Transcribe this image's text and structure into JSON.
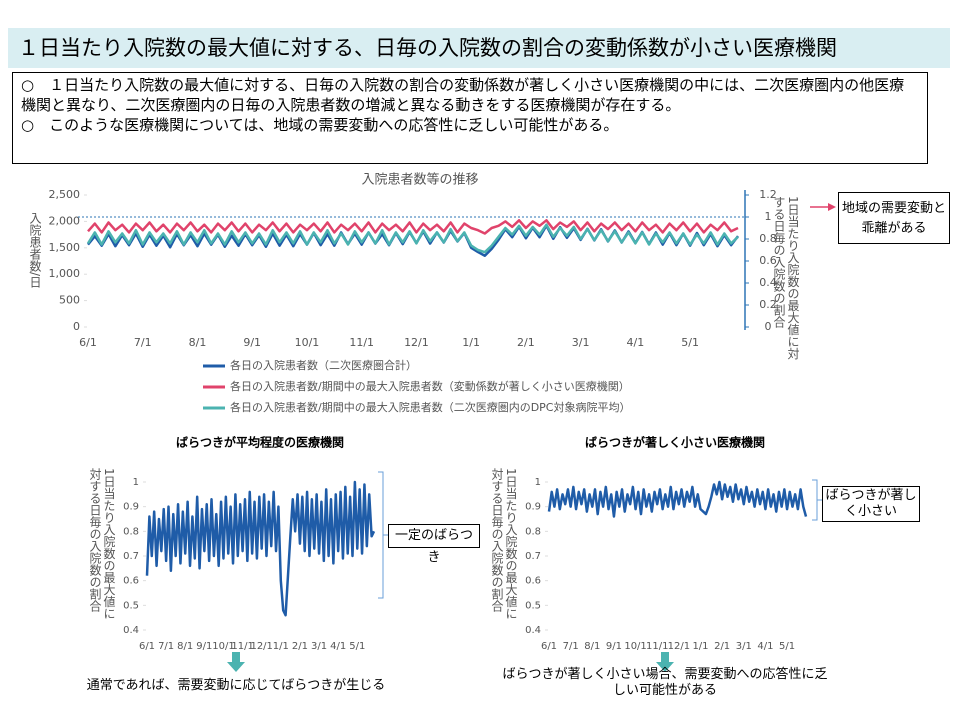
{
  "header": {
    "title": "１日当たり入院数の最大値に対する、日毎の入院数の割合の変動係数が小さい医療機関"
  },
  "notes": [
    "○　１日当たり入院数の最大値に対する、日毎の入院数の割合の変動係数が著しく小さい医療機関の中には、二次医療圏内の他医療機関と異なり、二次医療圏内の日毎の入院患者数の増減と異なる動きをする医療機関が存在する。",
    "○　このような医療機関については、地域の需要変動への応答性に乏しい可能性がある。"
  ],
  "chart_data": [
    {
      "type": "line",
      "title": "入院患者数等の推移",
      "y_label": "入院患者数/日",
      "y2_label": "1日当たり入院数の最大値に対する日毎の入院数の割合",
      "annotation": "地域の需要変動と乖離がある",
      "categories": [
        "6/1",
        null,
        null,
        null,
        null,
        null,
        null,
        null,
        "7/1",
        null,
        null,
        null,
        null,
        null,
        null,
        null,
        "8/1",
        null,
        null,
        null,
        null,
        null,
        null,
        null,
        "9/1",
        null,
        null,
        null,
        null,
        null,
        null,
        null,
        "10/1",
        null,
        null,
        null,
        null,
        null,
        null,
        null,
        "11/1",
        null,
        null,
        null,
        null,
        null,
        null,
        null,
        "12/1",
        null,
        null,
        null,
        null,
        null,
        null,
        null,
        "1/1",
        null,
        null,
        null,
        null,
        null,
        null,
        null,
        "2/1",
        null,
        null,
        null,
        null,
        null,
        null,
        null,
        "3/1",
        null,
        null,
        null,
        null,
        null,
        null,
        null,
        "4/1",
        null,
        null,
        null,
        null,
        null,
        null,
        null,
        "5/1",
        null,
        null,
        null,
        null,
        null,
        null,
        null
      ],
      "ylim": [
        0,
        2500
      ],
      "yticks": [
        0,
        500,
        {
          "value": 1000,
          "label": "1,000"
        },
        {
          "value": 1500,
          "label": "1,500"
        },
        {
          "value": 2000,
          "label": "2,000"
        },
        {
          "value": 2500,
          "label": "2,500"
        }
      ],
      "y2lim": [
        0,
        1.2
      ],
      "y2ticks": [
        0,
        0.2,
        0.4,
        0.6,
        0.8,
        1,
        1.2
      ],
      "hline_y2": 1,
      "legend": "bottom",
      "series": [
        {
          "name": "各日の入院患者数（二次医療圏合計）",
          "color": "#1f5ca8",
          "values": [
            1560,
            1720,
            1540,
            1760,
            1530,
            1740,
            1550,
            1770,
            1520,
            1750,
            1540,
            1730,
            1510,
            1760,
            1550,
            1740,
            1530,
            1770,
            1560,
            1750,
            1520,
            1730,
            1540,
            1760,
            1550,
            1740,
            1520,
            1770,
            1540,
            1750,
            1530,
            1760,
            1560,
            1780,
            1550,
            1760,
            1540,
            1790,
            1570,
            1770,
            1560,
            1790,
            1580,
            1760,
            1550,
            1780,
            1570,
            1800,
            1590,
            1810,
            1580,
            1790,
            1600,
            1820,
            1620,
            1780,
            1500,
            1420,
            1350,
            1480,
            1650,
            1850,
            1700,
            1900,
            1680,
            1880,
            1700,
            1920,
            1670,
            1890,
            1690,
            1870,
            1650,
            1860,
            1640,
            1850,
            1620,
            1830,
            1600,
            1810,
            1590,
            1800,
            1570,
            1790,
            1560,
            1780,
            1550,
            1770,
            1540,
            1780,
            1550,
            1760,
            1530,
            1740,
            1550,
            1720
          ]
        },
        {
          "name": "各日の入院患者数/期間中の最大入院患者数（変動係数が著しく小さい医療機関）",
          "color": "#e0436b",
          "axis": "y2",
          "values": [
            0.87,
            0.94,
            0.86,
            0.95,
            0.88,
            0.93,
            0.86,
            0.94,
            0.88,
            0.95,
            0.87,
            0.93,
            0.86,
            0.94,
            0.88,
            0.95,
            0.87,
            0.93,
            0.86,
            0.94,
            0.88,
            0.95,
            0.87,
            0.94,
            0.86,
            0.93,
            0.88,
            0.95,
            0.87,
            0.94,
            0.86,
            0.93,
            0.88,
            0.94,
            0.87,
            0.95,
            0.86,
            0.93,
            0.88,
            0.94,
            0.87,
            0.95,
            0.86,
            0.94,
            0.88,
            0.93,
            0.87,
            0.95,
            0.86,
            0.94,
            0.88,
            0.93,
            0.87,
            0.95,
            0.86,
            0.94,
            0.9,
            0.88,
            0.85,
            0.9,
            0.92,
            0.96,
            0.91,
            0.97,
            0.9,
            0.96,
            0.92,
            0.97,
            0.89,
            0.95,
            0.91,
            0.96,
            0.88,
            0.95,
            0.87,
            0.94,
            0.89,
            0.95,
            0.88,
            0.94,
            0.87,
            0.95,
            0.88,
            0.93,
            0.86,
            0.94,
            0.88,
            0.95,
            0.87,
            0.94,
            0.86,
            0.93,
            0.88,
            0.95,
            0.87,
            0.9
          ]
        },
        {
          "name": "各日の入院患者数/期間中の最大入院患者数（二次医療圏内のDPC対象病院平均）",
          "color": "#4bb3b0",
          "axis": "y2",
          "values": [
            0.76,
            0.86,
            0.75,
            0.87,
            0.77,
            0.85,
            0.76,
            0.88,
            0.75,
            0.86,
            0.77,
            0.85,
            0.76,
            0.87,
            0.75,
            0.86,
            0.77,
            0.88,
            0.76,
            0.85,
            0.75,
            0.87,
            0.77,
            0.86,
            0.76,
            0.85,
            0.75,
            0.88,
            0.77,
            0.86,
            0.76,
            0.87,
            0.75,
            0.86,
            0.77,
            0.88,
            0.76,
            0.85,
            0.75,
            0.87,
            0.77,
            0.86,
            0.76,
            0.88,
            0.75,
            0.86,
            0.77,
            0.87,
            0.76,
            0.88,
            0.78,
            0.86,
            0.77,
            0.89,
            0.78,
            0.86,
            0.74,
            0.7,
            0.68,
            0.74,
            0.82,
            0.9,
            0.84,
            0.92,
            0.83,
            0.91,
            0.84,
            0.93,
            0.82,
            0.9,
            0.83,
            0.91,
            0.8,
            0.89,
            0.79,
            0.88,
            0.78,
            0.87,
            0.77,
            0.86,
            0.76,
            0.86,
            0.75,
            0.85,
            0.77,
            0.86,
            0.76,
            0.85,
            0.75,
            0.84,
            0.76,
            0.86,
            0.75,
            0.85,
            0.76,
            0.82
          ]
        }
      ]
    },
    {
      "type": "line",
      "title": "ばらつきが平均程度の医療機関",
      "y_label": "1日当たり入院数の最大値に対する日毎の入院数の割合",
      "annotation": "一定のばらつき",
      "caption": "通常であれば、需要変動に応じてばらつきが生じる",
      "categories": [
        "6/1",
        null,
        null,
        null,
        null,
        null,
        null,
        null,
        "7/1",
        null,
        null,
        null,
        null,
        null,
        null,
        null,
        "8/1",
        null,
        null,
        null,
        null,
        null,
        null,
        null,
        "9/1",
        null,
        null,
        null,
        null,
        null,
        null,
        null,
        "10/1",
        null,
        null,
        null,
        null,
        null,
        null,
        null,
        "11/1",
        null,
        null,
        null,
        null,
        null,
        null,
        null,
        "12/1",
        null,
        null,
        null,
        null,
        null,
        null,
        null,
        "1/1",
        null,
        null,
        null,
        null,
        null,
        null,
        null,
        "2/1",
        null,
        null,
        null,
        null,
        null,
        null,
        null,
        "3/1",
        null,
        null,
        null,
        null,
        null,
        null,
        null,
        "4/1",
        null,
        null,
        null,
        null,
        null,
        null,
        null,
        "5/1",
        null,
        null,
        null,
        null,
        null,
        null,
        null
      ],
      "ylim": [
        0.4,
        1
      ],
      "yticks": [
        0.4,
        0.5,
        0.6,
        0.7,
        0.8,
        0.9,
        1
      ],
      "series": [
        {
          "color": "#1f5ca8",
          "values": [
            0.62,
            0.86,
            0.7,
            0.88,
            0.66,
            0.85,
            0.72,
            0.89,
            0.68,
            0.9,
            0.64,
            0.87,
            0.7,
            0.91,
            0.67,
            0.88,
            0.71,
            0.92,
            0.66,
            0.86,
            0.69,
            0.94,
            0.65,
            0.89,
            0.72,
            0.91,
            0.68,
            0.93,
            0.7,
            0.87,
            0.66,
            0.92,
            0.69,
            0.94,
            0.71,
            0.9,
            0.67,
            0.95,
            0.7,
            0.91,
            0.72,
            0.93,
            0.68,
            0.96,
            0.71,
            0.92,
            0.69,
            0.94,
            0.73,
            0.95,
            0.7,
            0.92,
            0.74,
            0.96,
            0.72,
            0.9,
            0.6,
            0.48,
            0.46,
            0.62,
            0.78,
            0.93,
            0.8,
            0.95,
            0.75,
            0.94,
            0.72,
            0.96,
            0.7,
            0.93,
            0.73,
            0.95,
            0.71,
            0.92,
            0.68,
            0.97,
            0.7,
            0.93,
            0.67,
            0.95,
            0.72,
            0.96,
            0.69,
            0.98,
            0.71,
            0.94,
            0.7,
            1.0,
            0.73,
            0.97,
            0.71,
            0.99,
            0.74,
            0.95,
            0.78,
            0.8
          ]
        }
      ]
    },
    {
      "type": "line",
      "title": "ばらつきが著しく小さい医療機関",
      "y_label": "1日当たり入院数の最大値に対する日毎の入院数の割合",
      "annotation": "ばらつきが著しく小さい",
      "caption": "ばらつきが著しく小さい場合、需要変動への応答性に乏しい可能性がある",
      "categories": [
        "6/1",
        null,
        null,
        null,
        null,
        null,
        null,
        null,
        "7/1",
        null,
        null,
        null,
        null,
        null,
        null,
        null,
        "8/1",
        null,
        null,
        null,
        null,
        null,
        null,
        null,
        "9/1",
        null,
        null,
        null,
        null,
        null,
        null,
        null,
        "10/1",
        null,
        null,
        null,
        null,
        null,
        null,
        null,
        "11/1",
        null,
        null,
        null,
        null,
        null,
        null,
        null,
        "12/1",
        null,
        null,
        null,
        null,
        null,
        null,
        null,
        "1/1",
        null,
        null,
        null,
        null,
        null,
        null,
        null,
        "2/1",
        null,
        null,
        null,
        null,
        null,
        null,
        null,
        "3/1",
        null,
        null,
        null,
        null,
        null,
        null,
        null,
        "4/1",
        null,
        null,
        null,
        null,
        null,
        null,
        null,
        "5/1",
        null,
        null,
        null,
        null,
        null,
        null,
        null
      ],
      "ylim": [
        0.4,
        1
      ],
      "yticks": [
        0.4,
        0.5,
        0.6,
        0.7,
        0.8,
        0.9,
        1
      ],
      "series": [
        {
          "color": "#1f5ca8",
          "values": [
            0.88,
            0.96,
            0.9,
            0.97,
            0.89,
            0.95,
            0.91,
            0.97,
            0.9,
            0.98,
            0.89,
            0.96,
            0.91,
            0.97,
            0.88,
            0.95,
            0.9,
            0.97,
            0.87,
            0.96,
            0.9,
            0.98,
            0.89,
            0.95,
            0.86,
            0.96,
            0.9,
            0.97,
            0.88,
            0.95,
            0.91,
            0.98,
            0.89,
            0.96,
            0.87,
            0.97,
            0.9,
            0.95,
            0.88,
            0.96,
            0.91,
            0.97,
            0.89,
            0.95,
            0.9,
            0.98,
            0.89,
            0.96,
            0.91,
            0.97,
            0.9,
            0.96,
            0.92,
            0.98,
            0.9,
            0.95,
            0.89,
            0.88,
            0.87,
            0.9,
            0.94,
            0.99,
            0.95,
            1.0,
            0.93,
            0.99,
            0.94,
            0.98,
            0.92,
            0.99,
            0.93,
            0.97,
            0.91,
            0.98,
            0.92,
            0.96,
            0.9,
            0.97,
            0.91,
            0.96,
            0.89,
            0.97,
            0.9,
            0.95,
            0.88,
            0.96,
            0.9,
            0.97,
            0.89,
            0.96,
            0.9,
            0.95,
            0.89,
            0.97,
            0.9,
            0.86
          ]
        }
      ]
    }
  ]
}
